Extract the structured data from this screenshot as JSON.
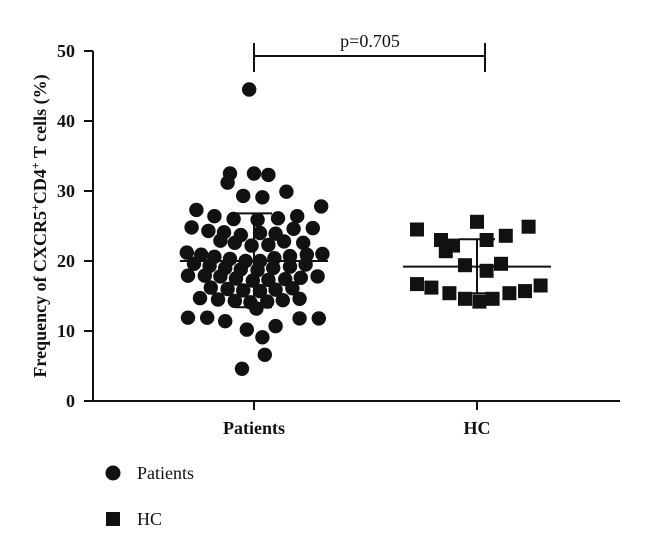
{
  "chart_data": {
    "type": "scatter",
    "title": "",
    "xlabel": "",
    "ylabel": "Frequency of CXCR5",
    "ylabel_sup1": "+",
    "ylabel_mid": "CD4",
    "ylabel_sup2": "+",
    "ylabel_end": " T cells (%)",
    "categories": [
      "Patients",
      "HC"
    ],
    "ylim": [
      0,
      50
    ],
    "yticks": [
      "0",
      "10",
      "20",
      "30",
      "40",
      "50"
    ],
    "annotation": "p=0.705",
    "legend_position": "bottom-left",
    "series": [
      {
        "name": "Patients",
        "marker": "circle",
        "color": "#111111",
        "mean": 20.0,
        "sd_upper": 26.8,
        "sd_lower": 13.4,
        "points": [
          [
            -0.04,
            44.5
          ],
          [
            0.0,
            32.5
          ],
          [
            -0.2,
            32.5
          ],
          [
            0.12,
            32.3
          ],
          [
            -0.22,
            31.2
          ],
          [
            0.27,
            29.9
          ],
          [
            -0.09,
            29.3
          ],
          [
            0.07,
            29.1
          ],
          [
            -0.48,
            27.3
          ],
          [
            0.56,
            27.8
          ],
          [
            -0.33,
            26.4
          ],
          [
            -0.17,
            26.0
          ],
          [
            0.03,
            25.9
          ],
          [
            0.2,
            26.1
          ],
          [
            0.36,
            26.4
          ],
          [
            -0.52,
            24.8
          ],
          [
            -0.38,
            24.3
          ],
          [
            -0.25,
            24.1
          ],
          [
            -0.11,
            23.7
          ],
          [
            0.05,
            24.0
          ],
          [
            0.18,
            23.9
          ],
          [
            0.33,
            24.6
          ],
          [
            0.49,
            24.7
          ],
          [
            -0.28,
            22.9
          ],
          [
            -0.16,
            22.6
          ],
          [
            -0.02,
            22.2
          ],
          [
            0.12,
            22.3
          ],
          [
            0.25,
            22.8
          ],
          [
            0.41,
            22.6
          ],
          [
            -0.56,
            21.2
          ],
          [
            -0.44,
            20.9
          ],
          [
            -0.33,
            20.6
          ],
          [
            -0.2,
            20.3
          ],
          [
            -0.07,
            20.0
          ],
          [
            0.05,
            20.0
          ],
          [
            0.17,
            20.4
          ],
          [
            0.3,
            20.7
          ],
          [
            0.44,
            20.9
          ],
          [
            0.57,
            21.0
          ],
          [
            -0.5,
            19.6
          ],
          [
            -0.37,
            19.3
          ],
          [
            -0.24,
            19.0
          ],
          [
            -0.11,
            18.8
          ],
          [
            0.03,
            18.7
          ],
          [
            0.16,
            19.0
          ],
          [
            0.3,
            19.2
          ],
          [
            0.43,
            19.5
          ],
          [
            -0.55,
            17.9
          ],
          [
            -0.41,
            17.9
          ],
          [
            -0.28,
            17.8
          ],
          [
            -0.15,
            17.5
          ],
          [
            -0.01,
            17.2
          ],
          [
            0.12,
            17.3
          ],
          [
            0.26,
            17.4
          ],
          [
            0.39,
            17.6
          ],
          [
            0.53,
            17.8
          ],
          [
            -0.36,
            16.2
          ],
          [
            -0.22,
            16.0
          ],
          [
            -0.09,
            15.8
          ],
          [
            0.05,
            15.7
          ],
          [
            0.18,
            15.9
          ],
          [
            0.32,
            16.1
          ],
          [
            -0.45,
            14.7
          ],
          [
            -0.3,
            14.5
          ],
          [
            -0.16,
            14.3
          ],
          [
            -0.03,
            14.1
          ],
          [
            0.11,
            14.2
          ],
          [
            0.24,
            14.4
          ],
          [
            0.38,
            14.6
          ],
          [
            0.02,
            13.2
          ],
          [
            -0.55,
            11.9
          ],
          [
            -0.39,
            11.9
          ],
          [
            -0.24,
            11.4
          ],
          [
            0.38,
            11.8
          ],
          [
            0.54,
            11.8
          ],
          [
            0.18,
            10.7
          ],
          [
            -0.06,
            10.2
          ],
          [
            0.07,
            9.1
          ],
          [
            0.09,
            6.6
          ],
          [
            -0.1,
            4.6
          ]
        ]
      },
      {
        "name": "HC",
        "marker": "square",
        "color": "#111111",
        "mean": 19.2,
        "sd_upper": 23.1,
        "sd_lower": 15.4,
        "points": [
          [
            -0.5,
            24.5
          ],
          [
            -0.3,
            23.0
          ],
          [
            -0.2,
            22.2
          ],
          [
            -0.26,
            21.4
          ],
          [
            -0.1,
            19.4
          ],
          [
            0.0,
            25.6
          ],
          [
            0.08,
            23.0
          ],
          [
            0.24,
            23.6
          ],
          [
            0.43,
            24.9
          ],
          [
            0.2,
            19.6
          ],
          [
            0.08,
            18.6
          ],
          [
            -0.5,
            16.7
          ],
          [
            -0.38,
            16.2
          ],
          [
            -0.23,
            15.4
          ],
          [
            -0.1,
            14.6
          ],
          [
            0.02,
            14.2
          ],
          [
            0.13,
            14.6
          ],
          [
            0.27,
            15.4
          ],
          [
            0.4,
            15.7
          ],
          [
            0.53,
            16.5
          ]
        ]
      }
    ]
  }
}
